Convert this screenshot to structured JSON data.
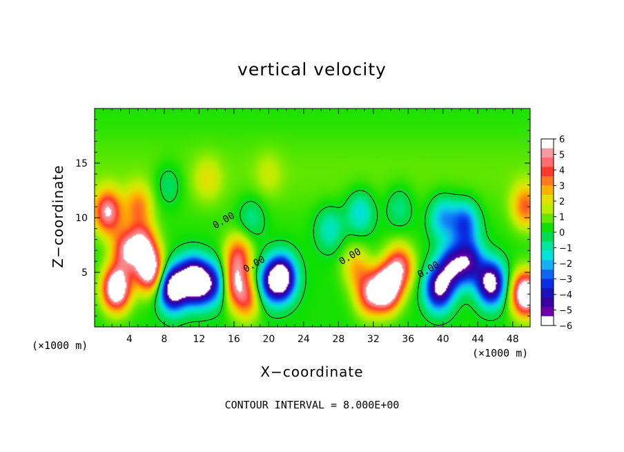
{
  "chart_data": {
    "type": "heatmap",
    "title": "vertical velocity",
    "xlabel": "X−coordinate",
    "ylabel": "Z−coordinate",
    "x_unit_label": "(×1000 m)",
    "y_unit_label": "(×1000 m)",
    "footer": "CONTOUR INTERVAL = 8.000E+00",
    "xlim": [
      0,
      50
    ],
    "ylim": [
      0,
      20
    ],
    "x_ticks": [
      4,
      8,
      12,
      16,
      20,
      24,
      28,
      32,
      36,
      40,
      44,
      48
    ],
    "y_ticks": [
      5,
      10,
      15
    ],
    "x_tick_labels": [
      "4",
      "8",
      "12",
      "16",
      "20",
      "24",
      "28",
      "32",
      "36",
      "40",
      "44",
      "48"
    ],
    "y_tick_labels": [
      "5",
      "10",
      "15"
    ],
    "colorbar": {
      "ticks": [
        "6",
        "5",
        "4",
        "3",
        "2",
        "1",
        "0",
        "−1",
        "−2",
        "−3",
        "−4",
        "−5",
        "−6"
      ],
      "range": [
        -6,
        6
      ],
      "colors": [
        "#ffffff",
        "#f29ba0",
        "#ff6e6e",
        "#ff3a2a",
        "#ff7a1c",
        "#ffb300",
        "#e3e000",
        "#b9ee00",
        "#66e800",
        "#10e000",
        "#00dc50",
        "#00e6a0",
        "#00e1d8",
        "#15b0f5",
        "#0c68f4",
        "#0a2ee6",
        "#1a14b8",
        "#3800a0",
        "#6a00a8",
        "#ffffff"
      ]
    },
    "contour_labels": [
      "0.00",
      "0.00",
      "0.00",
      "0.00"
    ],
    "features": [
      {
        "x": 1.5,
        "z": 10.5,
        "value": 5.5
      },
      {
        "x": 2.5,
        "z": 3.5,
        "value": 8.0
      },
      {
        "x": 5.5,
        "z": 7.5,
        "value": 5.0
      },
      {
        "x": 6.3,
        "z": 5.2,
        "value": 7.0
      },
      {
        "x": 3.5,
        "z": 7.0,
        "value": 4.5
      },
      {
        "x": 9.0,
        "z": 3.5,
        "value": -8.0
      },
      {
        "x": 11.0,
        "z": 4.5,
        "value": -4.5
      },
      {
        "x": 12.0,
        "z": 4.0,
        "value": -6.0
      },
      {
        "x": 14.0,
        "z": 4.0,
        "value": -4.0
      },
      {
        "x": 16.0,
        "z": 4.0,
        "value": 4.5
      },
      {
        "x": 17.5,
        "z": 2.5,
        "value": 3.5
      },
      {
        "x": 16.5,
        "z": 6.5,
        "value": 4.0
      },
      {
        "x": 21.5,
        "z": 4.5,
        "value": -8.0
      },
      {
        "x": 20.0,
        "z": 4.0,
        "value": -3.5
      },
      {
        "x": 33.5,
        "z": 3.5,
        "value": 8.0
      },
      {
        "x": 31.5,
        "z": 3.0,
        "value": 4.5
      },
      {
        "x": 35.0,
        "z": 5.5,
        "value": 5.0
      },
      {
        "x": 30.0,
        "z": 5.5,
        "value": 2.5
      },
      {
        "x": 39.5,
        "z": 3.5,
        "value": -6.5
      },
      {
        "x": 41.0,
        "z": 5.5,
        "value": -5.0
      },
      {
        "x": 43.0,
        "z": 6.0,
        "value": -5.0
      },
      {
        "x": 45.5,
        "z": 4.0,
        "value": -7.5
      },
      {
        "x": 49.5,
        "z": 3.0,
        "value": 8.0
      },
      {
        "x": 5.0,
        "z": 11.0,
        "value": 3.0
      },
      {
        "x": 42.5,
        "z": 9.5,
        "value": -4.0
      },
      {
        "x": 30.5,
        "z": 10.5,
        "value": -2.5
      },
      {
        "x": 18.0,
        "z": 10.0,
        "value": -1.5
      },
      {
        "x": 40.0,
        "z": 10.0,
        "value": -3.0
      },
      {
        "x": 8.5,
        "z": 13.0,
        "value": -1.5
      },
      {
        "x": 27.0,
        "z": 9.0,
        "value": -2.0
      },
      {
        "x": 13.0,
        "z": 13.5,
        "value": 1.5
      },
      {
        "x": 20.0,
        "z": 14.0,
        "value": 1.0
      },
      {
        "x": 35.0,
        "z": 11.0,
        "value": -1.5
      },
      {
        "x": 49.5,
        "z": 11.0,
        "value": 3.5
      }
    ]
  }
}
